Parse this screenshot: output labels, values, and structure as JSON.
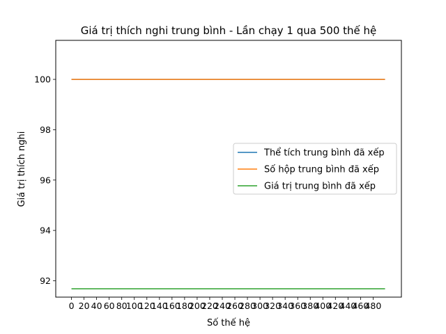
{
  "chart_data": {
    "type": "line",
    "title": "Giá trị thích nghi trung bình - Lần chạy 1 qua 500 thế hệ",
    "xlabel": "Số thế hệ",
    "ylabel": "Giá trị thích nghi",
    "xlim": [
      -25,
      525
    ],
    "ylim": [
      91.35,
      101.55
    ],
    "x_ticks": [
      0,
      20,
      40,
      60,
      80,
      100,
      120,
      140,
      160,
      180,
      200,
      220,
      240,
      260,
      280,
      300,
      320,
      340,
      360,
      380,
      400,
      420,
      440,
      460,
      480
    ],
    "x_tick_labels": [
      "0",
      "20",
      "40",
      "60",
      "80",
      "100",
      "120",
      "140",
      "160",
      "180",
      "200",
      "220",
      "240",
      "260",
      "280",
      "300",
      "320",
      "340",
      "360",
      "380",
      "400",
      "420",
      "440",
      "460",
      "480"
    ],
    "y_ticks": [
      92,
      94,
      96,
      98,
      100
    ],
    "y_tick_labels": [
      "92",
      "94",
      "96",
      "98",
      "100"
    ],
    "grid": false,
    "legend_position": "center-right",
    "x": [
      0,
      499
    ],
    "series": [
      {
        "name": "Thể tích trung bình đã xếp",
        "color": "#1f77b4",
        "values": [
          100.0,
          100.0
        ]
      },
      {
        "name": "Số hộp trung bình đã xếp",
        "color": "#ff7f0e",
        "values": [
          100.0,
          100.0
        ]
      },
      {
        "name": "Giá trị trung bình đã xếp",
        "color": "#2ca02c",
        "values": [
          91.68,
          91.68
        ]
      }
    ]
  }
}
